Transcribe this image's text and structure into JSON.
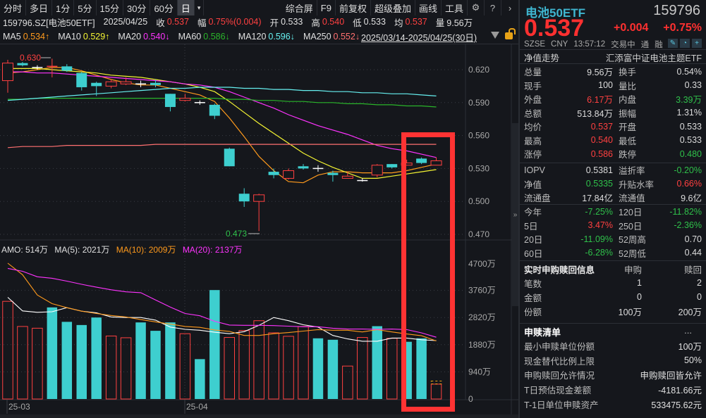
{
  "toolbar": {
    "periods": [
      "分时",
      "多日",
      "1分",
      "5分",
      "15分",
      "30分",
      "60分",
      "日"
    ],
    "active_period": "日",
    "dropdown_icon": "triangle-down",
    "actions": [
      "综合屏",
      "F9",
      "前复权",
      "超级叠加",
      "画线",
      "工具"
    ],
    "icons": [
      "gear-icon",
      "help-icon",
      "chevron-right-icon"
    ]
  },
  "quote_line": {
    "symbol": "159796.SZ[电池50ETF]",
    "date": "2025/04/25",
    "close_label": "收",
    "close": "0.537",
    "change_label": "幅",
    "change": "0.75%(0.004)",
    "open_label": "开",
    "open": "0.533",
    "high_label": "高",
    "high": "0.540",
    "low_label": "低",
    "low": "0.533",
    "avg_label": "均",
    "avg": "0.537",
    "volume_label": "量",
    "volume": "9.56万"
  },
  "ma_line": {
    "items": [
      {
        "label": "MA5",
        "value": "0.534↑",
        "color": "#ff9a1c"
      },
      {
        "label": "MA10",
        "value": "0.529↑",
        "color": "#f5f532"
      },
      {
        "label": "MA20",
        "value": "0.540↓",
        "color": "#ff33ff"
      },
      {
        "label": "MA60",
        "value": "0.586↓",
        "color": "#2ab52a"
      },
      {
        "label": "MA120",
        "value": "0.596↓",
        "color": "#66f0f0"
      },
      {
        "label": "MA250",
        "value": "0.552↓",
        "color": "#ff7070"
      }
    ],
    "range": "2025/03/14-2025/04/25(30日)"
  },
  "amo_line": {
    "amo": "AMO: 514万",
    "ma5": "MA(5): 2021万",
    "ma10": "MA(10): 2009万",
    "ma20": "MA(20): 2137万"
  },
  "chart_data": [
    {
      "type": "candlestick",
      "title": "159796.SZ 电池50ETF 日K",
      "x": [
        "25-03-14",
        "25-03-17",
        "25-03-18",
        "25-03-19",
        "25-03-20",
        "25-03-21",
        "25-03-24",
        "25-03-25",
        "25-03-26",
        "25-03-27",
        "25-03-28",
        "25-03-31",
        "25-04-01",
        "25-04-02",
        "25-04-03",
        "25-04-07",
        "25-04-08",
        "25-04-09",
        "25-04-10",
        "25-04-11",
        "25-04-14",
        "25-04-15",
        "25-04-16",
        "25-04-17",
        "25-04-18",
        "25-04-21",
        "25-04-22",
        "25-04-23",
        "25-04-24",
        "25-04-25"
      ],
      "x_tick_labels": [
        "25-03",
        "25-04"
      ],
      "open": [
        0.61,
        0.626,
        0.622,
        0.622,
        0.623,
        0.617,
        0.608,
        0.605,
        0.607,
        0.607,
        0.608,
        0.598,
        0.592,
        0.59,
        0.588,
        0.548,
        0.507,
        0.5,
        0.527,
        0.521,
        0.532,
        0.53,
        0.526,
        0.521,
        0.519,
        0.524,
        0.534,
        0.533,
        0.539,
        0.533
      ],
      "high": [
        0.629,
        0.627,
        0.624,
        0.63,
        0.625,
        0.618,
        0.609,
        0.611,
        0.613,
        0.61,
        0.611,
        0.598,
        0.598,
        0.592,
        0.589,
        0.549,
        0.512,
        0.507,
        0.53,
        0.53,
        0.534,
        0.533,
        0.528,
        0.527,
        0.521,
        0.534,
        0.534,
        0.538,
        0.54,
        0.54
      ],
      "low": [
        0.599,
        0.623,
        0.62,
        0.613,
        0.618,
        0.601,
        0.596,
        0.603,
        0.606,
        0.604,
        0.604,
        0.582,
        0.591,
        0.588,
        0.575,
        0.532,
        0.495,
        0.473,
        0.521,
        0.52,
        0.529,
        0.527,
        0.518,
        0.521,
        0.518,
        0.522,
        0.53,
        0.533,
        0.534,
        0.533
      ],
      "close": [
        0.626,
        0.624,
        0.622,
        0.623,
        0.619,
        0.604,
        0.605,
        0.609,
        0.609,
        0.607,
        0.606,
        0.586,
        0.594,
        0.59,
        0.578,
        0.532,
        0.5,
        0.506,
        0.524,
        0.528,
        0.53,
        0.53,
        0.524,
        0.523,
        0.519,
        0.533,
        0.531,
        0.535,
        0.535,
        0.537
      ],
      "annotations": [
        {
          "text": "0.630",
          "color": "#ff4040",
          "at_index": 3
        },
        {
          "text": "0.473",
          "color": "#2fc04a",
          "at_index": 17
        }
      ],
      "ma_series": [
        {
          "name": "MA5",
          "color": "#ff9a1c",
          "values": [
            0.617,
            0.618,
            0.62,
            0.622,
            0.622,
            0.619,
            0.615,
            0.611,
            0.608,
            0.606,
            0.606,
            0.603,
            0.6,
            0.597,
            0.591,
            0.576,
            0.559,
            0.541,
            0.528,
            0.518,
            0.517,
            0.524,
            0.527,
            0.527,
            0.526,
            0.526,
            0.526,
            0.528,
            0.531,
            0.534
          ]
        },
        {
          "name": "MA10",
          "color": "#f5f532",
          "values": [
            0.621,
            0.621,
            0.621,
            0.62,
            0.619,
            0.618,
            0.617,
            0.615,
            0.614,
            0.613,
            0.611,
            0.609,
            0.607,
            0.604,
            0.6,
            0.591,
            0.581,
            0.571,
            0.562,
            0.553,
            0.544,
            0.537,
            0.531,
            0.526,
            0.521,
            0.521,
            0.523,
            0.525,
            0.527,
            0.529
          ]
        },
        {
          "name": "MA20",
          "color": "#ff33ff",
          "values": [
            0.618,
            0.618,
            0.617,
            0.617,
            0.616,
            0.615,
            0.614,
            0.613,
            0.612,
            0.611,
            0.61,
            0.609,
            0.607,
            0.606,
            0.604,
            0.6,
            0.595,
            0.59,
            0.585,
            0.579,
            0.574,
            0.569,
            0.565,
            0.561,
            0.556,
            0.551,
            0.548,
            0.546,
            0.543,
            0.54
          ]
        },
        {
          "name": "MA60",
          "color": "#2ab52a",
          "values": [
            0.593,
            0.593,
            0.594,
            0.594,
            0.594,
            0.594,
            0.594,
            0.594,
            0.594,
            0.594,
            0.594,
            0.594,
            0.594,
            0.594,
            0.594,
            0.593,
            0.593,
            0.592,
            0.592,
            0.591,
            0.591,
            0.59,
            0.59,
            0.589,
            0.589,
            0.588,
            0.588,
            0.587,
            0.587,
            0.586
          ]
        },
        {
          "name": "MA120",
          "color": "#66f0f0",
          "values": [
            0.592,
            0.593,
            0.594,
            0.595,
            0.596,
            0.597,
            0.598,
            0.599,
            0.6,
            0.601,
            0.602,
            0.603,
            0.603,
            0.604,
            0.604,
            0.604,
            0.603,
            0.603,
            0.602,
            0.602,
            0.601,
            0.601,
            0.6,
            0.6,
            0.599,
            0.599,
            0.598,
            0.598,
            0.597,
            0.596
          ]
        },
        {
          "name": "MA250",
          "color": "#ff7070",
          "values": [
            0.549,
            0.55,
            0.55,
            0.55,
            0.551,
            0.551,
            0.551,
            0.551,
            0.551,
            0.551,
            0.552,
            0.552,
            0.552,
            0.552,
            0.552,
            0.552,
            0.552,
            0.552,
            0.552,
            0.552,
            0.552,
            0.552,
            0.552,
            0.552,
            0.552,
            0.552,
            0.552,
            0.552,
            0.552,
            0.552
          ]
        }
      ],
      "y_ticks": [
        0.62,
        0.59,
        0.56,
        0.53,
        0.5,
        0.47
      ],
      "ylim": [
        0.462,
        0.637
      ],
      "grid": true
    },
    {
      "type": "bar",
      "title": "AMO 成交额",
      "x_tick_labels": [
        "25-03",
        "25-04"
      ],
      "values": [
        3380,
        2510,
        2450,
        3170,
        2670,
        2560,
        2820,
        2180,
        2120,
        2650,
        2360,
        2650,
        2260,
        1380,
        3770,
        2130,
        2370,
        2710,
        2290,
        2170,
        2510,
        2100,
        2050,
        1140,
        2130,
        2520,
        2100,
        1980,
        2100,
        514
      ],
      "up": [
        true,
        true,
        true,
        false,
        false,
        false,
        false,
        true,
        true,
        false,
        false,
        false,
        true,
        false,
        false,
        true,
        true,
        true,
        true,
        true,
        true,
        false,
        false,
        true,
        true,
        false,
        true,
        false,
        false,
        true
      ],
      "ma_series": [
        {
          "name": "MA(5)",
          "color": "#ffffff",
          "values": [
            3520,
            3050,
            3000,
            3020,
            3160,
            3040,
            2980,
            2840,
            2820,
            2820,
            2730,
            2490,
            2410,
            2380,
            2310,
            2260,
            2330,
            2550,
            2820,
            2710,
            2570,
            2490,
            2200,
            2080,
            2000,
            2000,
            2110,
            2110,
            2050,
            2021
          ]
        },
        {
          "name": "MA(10)",
          "color": "#ff9a1c",
          "values": [
            4700,
            4300,
            3600,
            3300,
            3160,
            3040,
            2960,
            2890,
            2840,
            2750,
            2670,
            2590,
            2510,
            2480,
            2390,
            2340,
            2200,
            2200,
            2260,
            2300,
            2350,
            2400,
            2380,
            2380,
            2320,
            2400,
            2320,
            2250,
            2190,
            2009
          ]
        },
        {
          "name": "MA(20)",
          "color": "#ff33ff",
          "values": [
            4520,
            4420,
            4230,
            4180,
            4080,
            3970,
            3870,
            3780,
            3710,
            3680,
            3430,
            3180,
            2960,
            2880,
            2690,
            2560,
            2550,
            2550,
            2540,
            2520,
            2500,
            2500,
            2450,
            2420,
            2420,
            2410,
            2420,
            2400,
            2290,
            2137
          ]
        }
      ],
      "y_ticks": [
        "4700万",
        "3760万",
        "2820万",
        "1880万",
        "940万",
        "0"
      ],
      "ylim": [
        0,
        4700
      ],
      "unit": "万"
    }
  ],
  "right_panel": {
    "name": "电池50ETF",
    "code": "159796",
    "price": "0.537",
    "change": "+0.004",
    "change_pct": "+0.75%",
    "exchange": "SZSE",
    "currency": "CNY",
    "time": "13:57:12",
    "status": "交易中",
    "flags": [
      "通",
      "融"
    ],
    "icons": [
      "edit-icon",
      "bell-icon",
      "plus-icon"
    ],
    "nav_label": "净值走势",
    "fund_name": "汇添富中证电池主题ETF",
    "stats": [
      {
        "l1": "总量",
        "v1": "9.56万",
        "c1": "#dcdcdc",
        "l2": "换手",
        "v2": "0.54%",
        "c2": "#dcdcdc"
      },
      {
        "l1": "现手",
        "v1": "100",
        "c1": "#dcdcdc",
        "l2": "量比",
        "v2": "0.33",
        "c2": "#dcdcdc"
      },
      {
        "l1": "外盘",
        "v1": "6.17万",
        "c1": "#ff4040",
        "l2": "内盘",
        "v2": "3.39万",
        "c2": "#2fc04a"
      },
      {
        "l1": "总额",
        "v1": "513.84万",
        "c1": "#dcdcdc",
        "l2": "振幅",
        "v2": "1.31%",
        "c2": "#dcdcdc"
      },
      {
        "l1": "均价",
        "v1": "0.537",
        "c1": "#ff4040",
        "l2": "开盘",
        "v2": "0.533",
        "c2": "#dcdcdc"
      },
      {
        "l1": "最高",
        "v1": "0.540",
        "c1": "#ff4040",
        "l2": "最低",
        "v2": "0.533",
        "c2": "#dcdcdc"
      },
      {
        "l1": "涨停",
        "v1": "0.586",
        "c1": "#ff4040",
        "l2": "跌停",
        "v2": "0.480",
        "c2": "#2fc04a"
      }
    ],
    "etf_stats": [
      {
        "l1": "IOPV",
        "v1": "0.5381",
        "c1": "#dcdcdc",
        "l2": "溢折率",
        "v2": "-0.20%",
        "c2": "#2fc04a"
      },
      {
        "l1": "净值",
        "v1": "0.5335",
        "c1": "#2fc04a",
        "l2": "升贴水率",
        "v2": "0.66%",
        "c2": "#ff4040"
      },
      {
        "l1": "流通盘",
        "v1": "17.84亿",
        "c1": "#dcdcdc",
        "l2": "流通值",
        "v2": "9.6亿",
        "c2": "#dcdcdc"
      }
    ],
    "returns": [
      {
        "l1": "今年",
        "v1": "-7.25%",
        "c1": "#2fc04a",
        "l2": "120日",
        "v2": "-11.82%",
        "c2": "#2fc04a"
      },
      {
        "l1": "5日",
        "v1": "3.47%",
        "c1": "#ff4040",
        "l2": "250日",
        "v2": "-2.36%",
        "c2": "#2fc04a"
      },
      {
        "l1": "20日",
        "v1": "-11.09%",
        "c1": "#2fc04a",
        "l2": "52周高",
        "v2": "0.70",
        "c2": "#dcdcdc"
      },
      {
        "l1": "60日",
        "v1": "-6.28%",
        "c1": "#2fc04a",
        "l2": "52周低",
        "v2": "0.44",
        "c2": "#dcdcdc"
      }
    ],
    "sub_redeem": {
      "title": "实时申购赎回信息",
      "col1": "申购",
      "col2": "赎回",
      "rows": [
        {
          "label": "笔数",
          "v1": "1",
          "v2": "2"
        },
        {
          "label": "金额",
          "v1": "0",
          "v2": "0"
        },
        {
          "label": "份额",
          "v1": "100万",
          "v2": "200万"
        }
      ]
    },
    "list": {
      "title": "申赎清单",
      "more": "...",
      "rows": [
        {
          "label": "最小申赎单位份额",
          "value": "100万"
        },
        {
          "label": "现金替代比例上限",
          "value": "50%"
        },
        {
          "label": "申购赎回允许情况",
          "value": "申购赎回皆允许"
        },
        {
          "label": "T日预估现金差额",
          "value": "-4181.66元"
        },
        {
          "label": "T-1日单位申赎资产",
          "value": "533475.62元"
        }
      ]
    }
  },
  "colors": {
    "up": "#ff4040",
    "down": "#3ecfcf",
    "background": "#15171c",
    "highlight_box": "#ff3333"
  }
}
